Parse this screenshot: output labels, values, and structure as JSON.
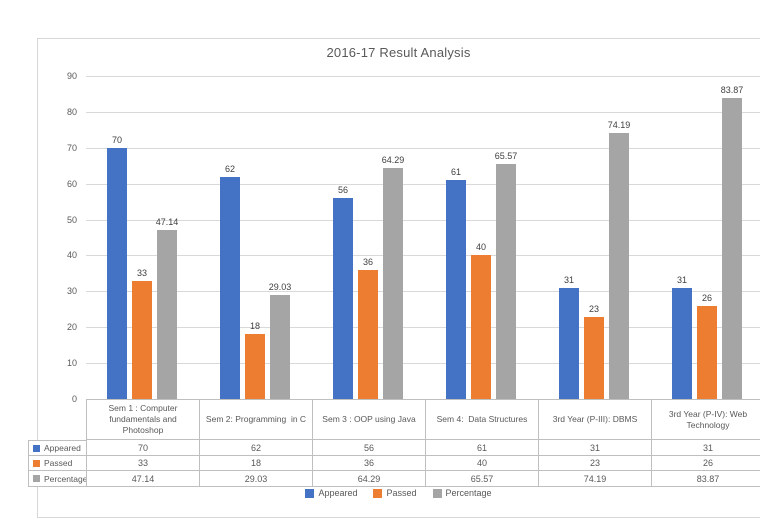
{
  "chart_data": {
    "type": "bar",
    "title": "2016-17 Result Analysis",
    "categories": [
      "Sem 1 : Computer fundamentals and Photoshop",
      "Sem 2: Programming  in C",
      "Sem 3 : OOP using Java",
      "Sem 4:  Data Structures",
      "3rd Year (P-III): DBMS",
      "3rd Year (P-IV): Web Technology"
    ],
    "series": [
      {
        "name": "Appeared",
        "color": "#4472C4",
        "values": [
          70,
          62,
          56,
          61,
          31,
          31
        ]
      },
      {
        "name": "Passed",
        "color": "#ED7D31",
        "values": [
          33,
          18,
          36,
          40,
          23,
          26
        ]
      },
      {
        "name": "Percentage",
        "color": "#A5A5A5",
        "values": [
          47.14,
          29.03,
          64.29,
          65.57,
          74.19,
          83.87
        ]
      }
    ],
    "ylim": [
      0,
      90
    ],
    "yticks": [
      0,
      10,
      20,
      30,
      40,
      50,
      60,
      70,
      80,
      90
    ],
    "grid": true,
    "legend_position": "bottom",
    "show_value_labels": true,
    "show_data_table": true
  },
  "colors": {
    "background": "#ffffff",
    "frame_border": "#d6d6d6",
    "gridline": "#d9d9d9",
    "table_border": "#bfbfbf",
    "title_text": "#595959",
    "axis_text": "#595959",
    "table_text": "#595959",
    "value_label_text": "#404040"
  }
}
